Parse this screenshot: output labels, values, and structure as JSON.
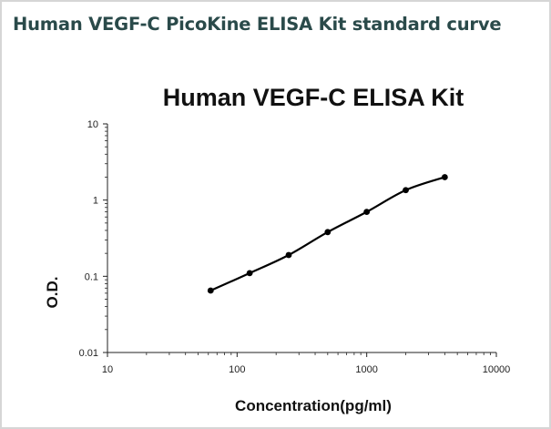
{
  "page": {
    "title": "Human VEGF-C PicoKine ELISA Kit standard curve"
  },
  "chart_data": {
    "type": "line",
    "title": "Human VEGF-C ELISA Kit",
    "xlabel": "Concentration(pg/ml)",
    "ylabel": "O.D.",
    "x_scale": "log",
    "y_scale": "log",
    "xlim": [
      10,
      10000
    ],
    "ylim": [
      0.01,
      10
    ],
    "x_ticks": [
      "10",
      "100",
      "1000",
      "10000"
    ],
    "y_ticks": [
      "0.01",
      "0.1",
      "1",
      "10"
    ],
    "grid": false,
    "legend": false,
    "series": [
      {
        "x": [
          62.5,
          125,
          250,
          500,
          1000,
          2000,
          4000
        ],
        "y": [
          0.065,
          0.11,
          0.19,
          0.38,
          0.7,
          1.35,
          2.0
        ],
        "color": "#000000",
        "markers": true,
        "smooth": true
      }
    ]
  }
}
